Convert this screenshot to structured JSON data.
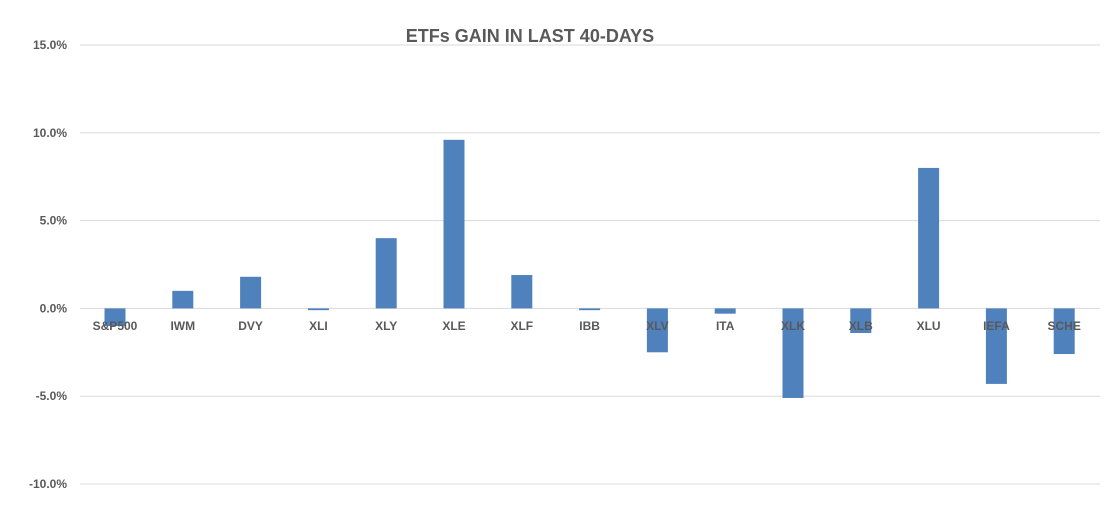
{
  "chart_data": {
    "type": "bar",
    "title": "ETFs GAIN IN LAST 40-DAYS",
    "xlabel": "",
    "ylabel": "",
    "categories": [
      "S&P500",
      "IWM",
      "DVY",
      "XLI",
      "XLY",
      "XLE",
      "XLF",
      "IBB",
      "XLV",
      "ITA",
      "XLK",
      "XLB",
      "XLU",
      "IEFA",
      "SCHE"
    ],
    "values": [
      -1.0,
      1.0,
      1.8,
      -0.1,
      4.0,
      9.6,
      1.9,
      -0.1,
      -2.5,
      -0.3,
      -5.1,
      -1.4,
      8.0,
      -4.3,
      -2.6
    ],
    "ylim": [
      -10,
      15
    ],
    "yticks": [
      15,
      10,
      5,
      0,
      -5,
      -10
    ],
    "ytick_labels": [
      "15.0%",
      "10.0%",
      "5.0%",
      "0.0%",
      "-5.0%",
      "-10.0%"
    ],
    "grid": true,
    "bar_color": "#4F81BD",
    "grid_color": "#D9D9D9"
  }
}
